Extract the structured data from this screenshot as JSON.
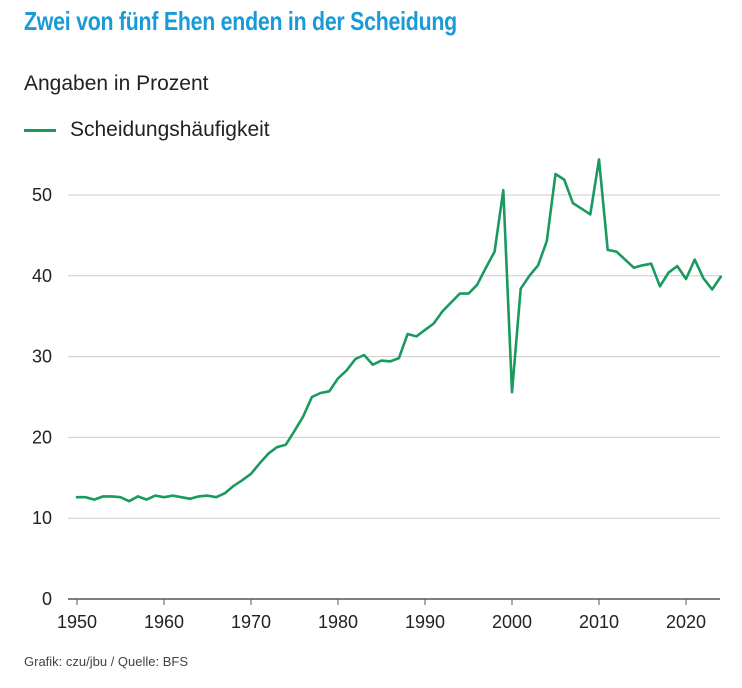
{
  "header": {
    "title": "Zwei von fünf Ehen enden in der Scheidung",
    "subtitle": "Angaben in Prozent"
  },
  "legend": {
    "label": "Scheidungshäufigkeit",
    "color": "#1a9a5e"
  },
  "footer": {
    "source": "Grafik: czu/jbu / Quelle: BFS"
  },
  "colors": {
    "title": "#1a9ad6",
    "line": "#1a9a5e",
    "grid": "#cccccc"
  },
  "chart_data": {
    "type": "line",
    "title": "Zwei von fünf Ehen enden in der Scheidung",
    "ylabel": "Angaben in Prozent",
    "xlim": [
      1949,
      2025
    ],
    "ylim": [
      0,
      55
    ],
    "x_ticks": [
      1950,
      1960,
      1970,
      1980,
      1990,
      2000,
      2010,
      2020
    ],
    "y_ticks": [
      0,
      10,
      20,
      30,
      40,
      50
    ],
    "grid": true,
    "series": [
      {
        "name": "Scheidungshäufigkeit",
        "x": [
          1950,
          1951,
          1952,
          1953,
          1954,
          1955,
          1956,
          1957,
          1958,
          1959,
          1960,
          1961,
          1962,
          1963,
          1964,
          1965,
          1966,
          1967,
          1968,
          1969,
          1970,
          1971,
          1972,
          1973,
          1974,
          1975,
          1976,
          1977,
          1978,
          1979,
          1980,
          1981,
          1982,
          1983,
          1984,
          1985,
          1986,
          1987,
          1988,
          1989,
          1990,
          1991,
          1992,
          1993,
          1994,
          1995,
          1996,
          1997,
          1998,
          1999,
          2000,
          2001,
          2002,
          2003,
          2004,
          2005,
          2006,
          2007,
          2008,
          2009,
          2010,
          2011,
          2012,
          2013,
          2014,
          2015,
          2016,
          2017,
          2018,
          2019,
          2020,
          2021,
          2022,
          2023,
          2024
        ],
        "values": [
          12.6,
          12.6,
          12.3,
          12.7,
          12.7,
          12.6,
          12.1,
          12.7,
          12.3,
          12.8,
          12.6,
          12.8,
          12.6,
          12.4,
          12.7,
          12.8,
          12.6,
          13.1,
          14.0,
          14.7,
          15.5,
          16.8,
          18.0,
          18.8,
          19.1,
          20.8,
          22.6,
          25.0,
          25.5,
          25.7,
          27.3,
          28.3,
          29.7,
          30.2,
          29.0,
          29.5,
          29.4,
          29.8,
          32.8,
          32.5,
          33.3,
          34.1,
          35.6,
          36.7,
          37.8,
          37.8,
          38.9,
          41.0,
          43.0,
          50.6,
          25.6,
          38.4,
          40.0,
          41.3,
          44.3,
          52.6,
          51.9,
          49.0,
          48.3,
          47.6,
          54.4,
          43.2,
          43.0,
          42.0,
          41.0,
          41.3,
          41.5,
          38.7,
          40.4,
          41.2,
          39.6,
          42.0,
          39.7,
          38.3,
          39.9
        ]
      }
    ]
  }
}
